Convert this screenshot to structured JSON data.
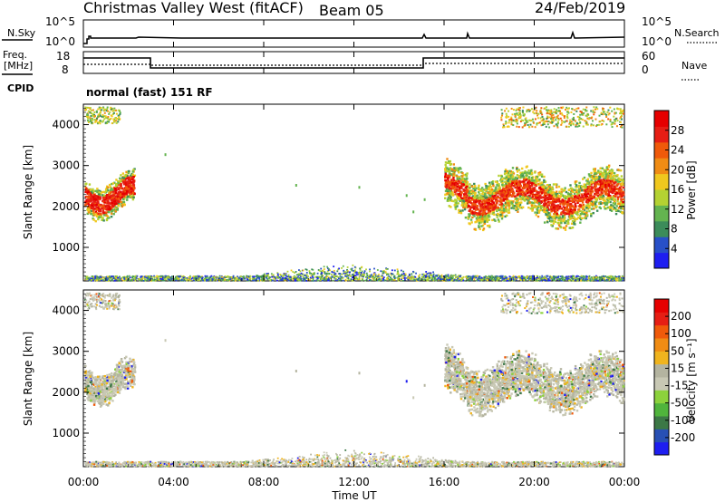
{
  "header": {
    "station": "Christmas Valley West (fitACF)",
    "beam": "Beam 05",
    "date": "24/Feb/2019"
  },
  "top_panels": {
    "nsky_label": "N.Sky",
    "nsky_ticks": [
      "10^5",
      "10^0"
    ],
    "nsearch_label": "N.Search",
    "nsearch_ticks": [
      "10^5",
      "10^0"
    ],
    "freq_label_line1": "Freq.",
    "freq_label_line2": "[MHz]",
    "freq_ticks": [
      "18",
      "8"
    ],
    "nave_label": "Nave",
    "nave_ticks": [
      "60",
      "0"
    ],
    "cpid_label": "CPID",
    "cpid_text": "normal (fast) 151 RF"
  },
  "colors": {
    "power": [
      "#1e1ef0",
      "#2850c8",
      "#3c8c5a",
      "#64b450",
      "#b4d232",
      "#f0c81e",
      "#f08c14",
      "#f05a0a",
      "#e61e14",
      "#e60000"
    ],
    "velocity": [
      "#1e1ef0",
      "#2850b4",
      "#3c7846",
      "#50b43c",
      "#8cd23c",
      "#c8c8b4",
      "#b4b4a0",
      "#f0b41e",
      "#f08c14",
      "#f05a0a",
      "#e61e14",
      "#e60000"
    ]
  },
  "chart_data": [
    {
      "type": "heatmap",
      "name": "power",
      "ylabel": "Slant Range [km]",
      "yticks": [
        "1000",
        "2000",
        "3000",
        "4000"
      ],
      "ylim": [
        180,
        4500
      ],
      "colorbar_label": "Power [dB]",
      "colorbar_ticks": [
        "4",
        "8",
        "12",
        "16",
        "20",
        "24",
        "28"
      ],
      "colorbar_range": [
        0,
        32
      ]
    },
    {
      "type": "heatmap",
      "name": "velocity",
      "ylabel": "Slant Range [km]",
      "yticks": [
        "1000",
        "2000",
        "3000",
        "4000"
      ],
      "ylim": [
        180,
        4500
      ],
      "colorbar_label": "Velocity [m s⁻¹]",
      "colorbar_ticks": [
        "200",
        "100",
        "50",
        "15",
        "-15",
        "-50",
        "-100",
        "-200"
      ]
    }
  ],
  "x_axis": {
    "label": "Time UT",
    "ticks": [
      "00:00",
      "04:00",
      "08:00",
      "12:00",
      "16:00",
      "20:00",
      "00:00"
    ],
    "range_hours": [
      0,
      24
    ]
  }
}
